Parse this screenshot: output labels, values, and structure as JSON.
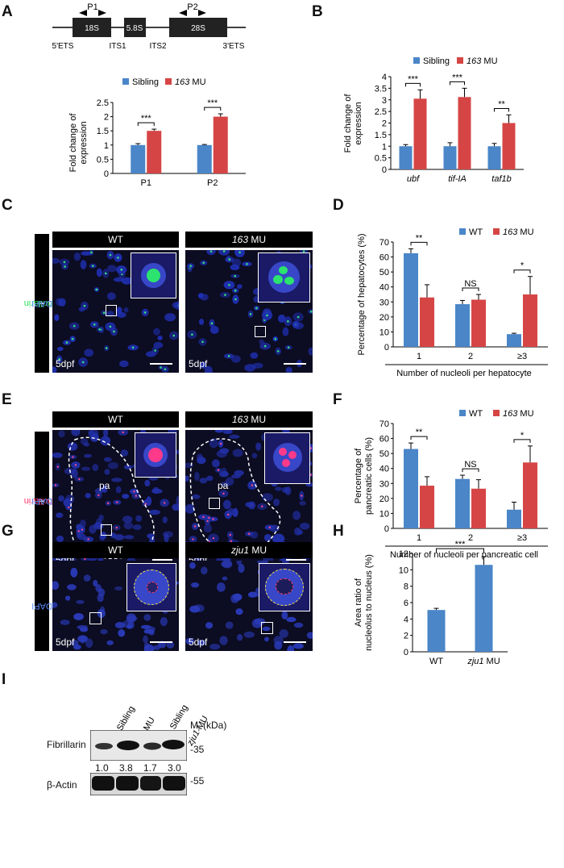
{
  "panels": {
    "A": "A",
    "B": "B",
    "C": "C",
    "D": "D",
    "E": "E",
    "F": "F",
    "G": "G",
    "H": "H",
    "I": "I"
  },
  "rdna": {
    "segments": [
      "18S",
      "5.8S",
      "28S"
    ],
    "spacers": [
      "5'ETS",
      "ITS1",
      "ITS2",
      "3'ETS"
    ],
    "primers": [
      "P1",
      "P2"
    ]
  },
  "legend_sibling": {
    "a": "Sibling",
    "b": "163",
    "b_suffix": " MU"
  },
  "legend_wt": {
    "a": "WT",
    "b": "163",
    "b_suffix": " MU"
  },
  "chart_data": [
    {
      "id": "A",
      "type": "bar",
      "categories": [
        "P1",
        "P2"
      ],
      "series": [
        {
          "name": "Sibling",
          "values": [
            1.0,
            1.0
          ],
          "err": [
            0.05,
            0.02
          ]
        },
        {
          "name": "163 MU",
          "values": [
            1.5,
            2.0
          ],
          "err": [
            0.06,
            0.1
          ]
        }
      ],
      "ylabel": "Fold change of expression",
      "ylim": [
        0,
        2.5
      ],
      "yticks": [
        "0",
        "0.5",
        "1",
        "1.5",
        "2",
        "2.5"
      ],
      "significance": [
        "***",
        "***"
      ],
      "colors": [
        "#4a86c8",
        "#d64545"
      ]
    },
    {
      "id": "B",
      "type": "bar",
      "categories": [
        "ubf",
        "tif-IA",
        "taf1b"
      ],
      "series": [
        {
          "name": "Sibling",
          "values": [
            1.0,
            1.0,
            1.0
          ],
          "err": [
            0.07,
            0.15,
            0.12
          ]
        },
        {
          "name": "163 MU",
          "values": [
            3.05,
            3.12,
            2.0
          ],
          "err": [
            0.38,
            0.38,
            0.35
          ]
        }
      ],
      "ylabel": "Fold change of expression",
      "ylim": [
        0,
        4
      ],
      "yticks": [
        "0",
        "0.5",
        "1",
        "1.5",
        "2",
        "2.5",
        "3",
        "3.5",
        "4"
      ],
      "significance": [
        "***",
        "***",
        "**"
      ],
      "colors": [
        "#4a86c8",
        "#d64545"
      ]
    },
    {
      "id": "D",
      "type": "bar",
      "categories": [
        "1",
        "2",
        "≥3"
      ],
      "series": [
        {
          "name": "WT",
          "values": [
            62.5,
            28.5,
            8.5
          ],
          "err": [
            3,
            2.5,
            0.6
          ]
        },
        {
          "name": "163 MU",
          "values": [
            33,
            31.5,
            35
          ],
          "err": [
            8.5,
            3.5,
            12
          ]
        }
      ],
      "ylabel": "Percentage of hepatocytes (%)",
      "xlabel": "Number of nucleoli per hepatocyte",
      "ylim": [
        0,
        70
      ],
      "yticks": [
        "0",
        "10",
        "20",
        "30",
        "40",
        "50",
        "60",
        "70"
      ],
      "significance": [
        "**",
        "NS",
        "*"
      ],
      "colors": [
        "#4a86c8",
        "#d64545"
      ]
    },
    {
      "id": "F",
      "type": "bar",
      "categories": [
        "1",
        "2",
        "≥3"
      ],
      "series": [
        {
          "name": "WT",
          "values": [
            53,
            33,
            12.5
          ],
          "err": [
            4,
            2.5,
            5
          ]
        },
        {
          "name": "163 MU",
          "values": [
            28.5,
            26.5,
            44
          ],
          "err": [
            6,
            6,
            11
          ]
        }
      ],
      "ylabel": "Percentage of pancreatic cells (%)",
      "xlabel": "Number of nucleoli per pancreatic cell",
      "ylim": [
        0,
        70
      ],
      "yticks": [
        "0",
        "10",
        "20",
        "30",
        "40",
        "50",
        "60",
        "70"
      ],
      "significance": [
        "**",
        "NS",
        "*"
      ],
      "colors": [
        "#4a86c8",
        "#d64545"
      ]
    },
    {
      "id": "H",
      "type": "bar",
      "categories": [
        "WT",
        "zju1 MU"
      ],
      "series": [
        {
          "name": "",
          "values": [
            5.1,
            10.6
          ],
          "err": [
            0.2,
            1.0
          ]
        }
      ],
      "ylabel": "Area ratio of nucleolus to nucleus (%)",
      "ylim": [
        0,
        12
      ],
      "yticks": [
        "0",
        "2",
        "4",
        "6",
        "8",
        "10",
        "12"
      ],
      "significance": [
        "***"
      ],
      "colors": [
        "#4a86c8"
      ]
    }
  ],
  "micro": {
    "C": {
      "left": "WT",
      "right": "163",
      "right_suffix": " MU",
      "stain_a": "Fibrillarin",
      "stain_plus": "+",
      "stain_b": "DAPI",
      "dpf": "5dpf"
    },
    "E": {
      "left": "WT",
      "right": "163",
      "right_suffix": " MU",
      "stain_a": "Fibrillarin",
      "stain_plus": "+",
      "stain_b": "DAPI",
      "dpf": "5dpf",
      "region": "pa"
    },
    "G": {
      "left": "WT",
      "right": "zju1",
      "right_suffix": " MU",
      "stain_b": "DAPI",
      "dpf": "5dpf"
    }
  },
  "western": {
    "lanes": [
      "163 Sibling",
      "163 MU",
      "zju1 Sibling",
      "zju1 MU"
    ],
    "mr_label": "M",
    "mr_sub": "r",
    "mr_unit": " (kDa)",
    "fib_label": "Fibrillarin",
    "fib_marker": "35",
    "ratios": [
      "1.0",
      "3.8",
      "1.7",
      "3.0"
    ],
    "actin_label": "β-Actin",
    "actin_marker": "55"
  }
}
